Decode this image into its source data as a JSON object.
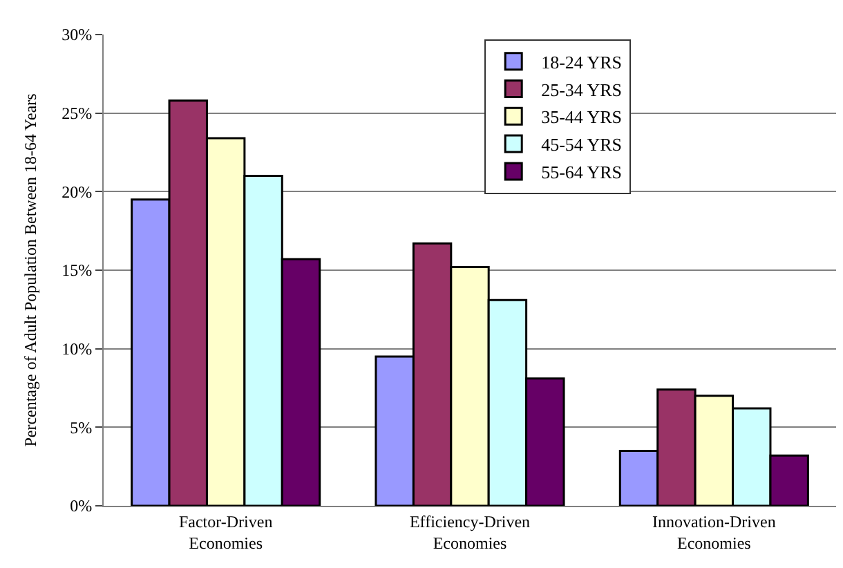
{
  "chart_data": {
    "type": "bar",
    "ylabel": "Percentage of Adult Population Between 18-64 Years",
    "categories": [
      "Factor-Driven\nEconomies",
      "Efficiency-Driven\nEconomies",
      "Innovation-Driven\nEconomies"
    ],
    "series": [
      {
        "name": "18-24 YRS",
        "color": "#9999ff",
        "values": [
          19.5,
          9.5,
          3.5
        ]
      },
      {
        "name": "25-34 YRS",
        "color": "#993366",
        "values": [
          25.8,
          16.7,
          7.4
        ]
      },
      {
        "name": "35-44 YRS",
        "color": "#ffffcc",
        "values": [
          23.4,
          15.2,
          7.0
        ]
      },
      {
        "name": "45-54 YRS",
        "color": "#ccffff",
        "values": [
          21.0,
          13.1,
          6.2
        ]
      },
      {
        "name": "55-64 YRS",
        "color": "#660066",
        "values": [
          15.7,
          8.1,
          3.2
        ]
      }
    ],
    "ylim": [
      0,
      30
    ],
    "yticks": [
      {
        "value": 0,
        "label": "0%"
      },
      {
        "value": 5,
        "label": "5%"
      },
      {
        "value": 10,
        "label": "10%"
      },
      {
        "value": 15,
        "label": "15%"
      },
      {
        "value": 20,
        "label": "20%"
      },
      {
        "value": 25,
        "label": "25%"
      },
      {
        "value": 30,
        "label": "30%"
      }
    ],
    "grid": "y",
    "legend": "top right"
  }
}
